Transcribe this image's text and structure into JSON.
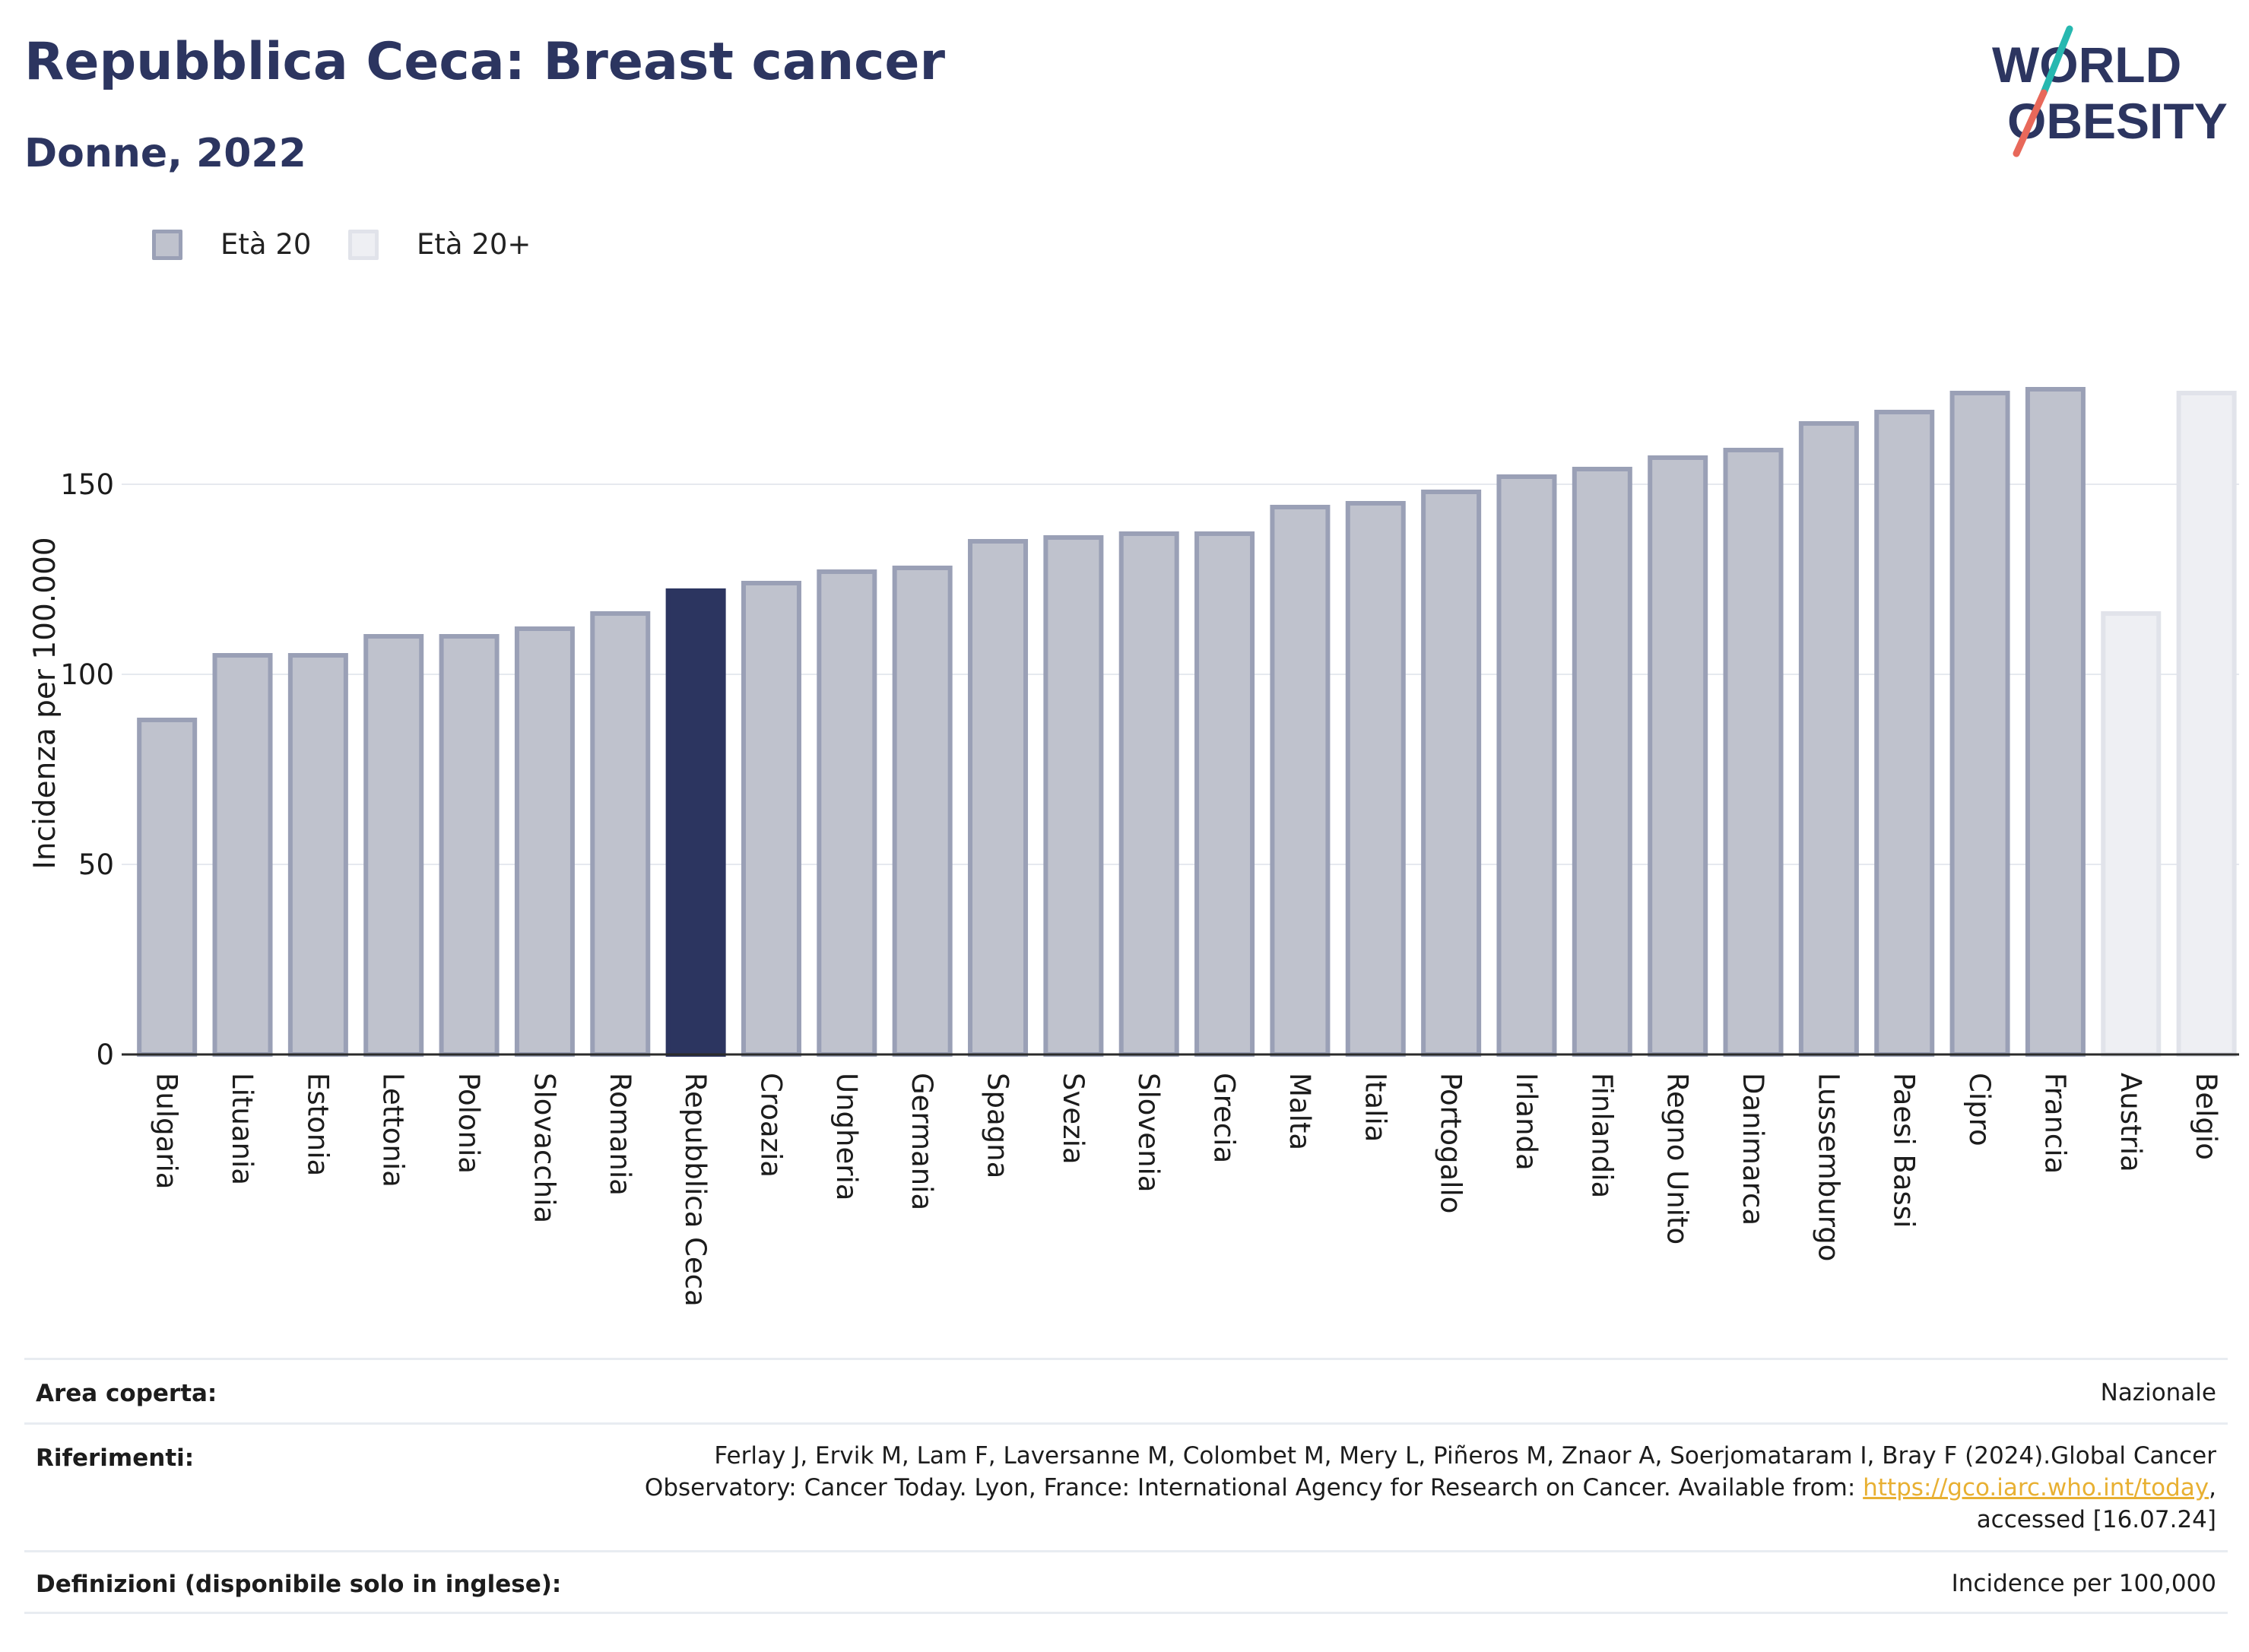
{
  "header": {
    "title": "Repubblica Ceca: Breast cancer",
    "subtitle": "Donne, 2022"
  },
  "logo": {
    "line1": "WORLD",
    "line2": "OBESITY",
    "colors": {
      "text": "#2c3560",
      "slash_top": "#27b8b0",
      "slash_bottom": "#e8685a"
    }
  },
  "colors": {
    "bar_default_fill": "#bfc2cd",
    "bar_default_stroke": "#9aa0b6",
    "bar_highlight_fill": "#2c3560",
    "bar_age20plus_fill": "#eeeff3",
    "bar_age20plus_stroke": "#e1e3ea",
    "axis": "#2b2b2b",
    "grid": "#e6e9ef"
  },
  "chart_data": {
    "type": "bar",
    "ylabel": "Incidenza per 100.000",
    "xlabel": "",
    "ylim": [
      0,
      185
    ],
    "yticks": [
      0,
      50,
      100,
      150
    ],
    "grid": true,
    "legend_position": "top-left",
    "legend": [
      {
        "label": "Età 20",
        "style": "age20"
      },
      {
        "label": "Età 20+",
        "style": "age20plus"
      }
    ],
    "highlight": "Repubblica Ceca",
    "categories": [
      "Bulgaria",
      "Lituania",
      "Estonia",
      "Lettonia",
      "Polonia",
      "Slovacchia",
      "Romania",
      "Repubblica Ceca",
      "Croazia",
      "Ungheria",
      "Germania",
      "Spagna",
      "Svezia",
      "Slovenia",
      "Grecia",
      "Malta",
      "Italia",
      "Portogallo",
      "Irlanda",
      "Finlandia",
      "Regno Unito",
      "Danimarca",
      "Lussemburgo",
      "Paesi Bassi",
      "Cipro",
      "Francia",
      "Austria",
      "Belgio"
    ],
    "values": [
      88,
      105,
      105,
      110,
      110,
      112,
      116,
      122,
      124,
      127,
      128,
      135,
      136,
      137,
      137,
      144,
      145,
      148,
      152,
      154,
      157,
      159,
      166,
      169,
      174,
      175,
      116,
      174
    ],
    "series_group": [
      "age20",
      "age20",
      "age20",
      "age20",
      "age20",
      "age20",
      "age20",
      "age20",
      "age20",
      "age20",
      "age20",
      "age20",
      "age20",
      "age20",
      "age20",
      "age20",
      "age20",
      "age20",
      "age20",
      "age20",
      "age20",
      "age20",
      "age20",
      "age20",
      "age20",
      "age20",
      "age20plus",
      "age20plus"
    ]
  },
  "info": {
    "area_label": "Area coperta:",
    "area_value": "Nazionale",
    "ref_label": "Riferimenti:",
    "ref_line1": "Ferlay J, Ervik M, Lam F, Laversanne M, Colombet M, Mery L, Piñeros M, Znaor A, Soerjomataram I, Bray F (2024).Global Cancer",
    "ref_line2_pre": "Observatory: Cancer Today. Lyon, France: International Agency for Research on Cancer. Available from: ",
    "ref_link": "https://gco.iarc.who.int/today",
    "ref_line2_post": ",",
    "ref_line3": "accessed [16.07.24]",
    "def_label": "Definizioni (disponibile solo in inglese):",
    "def_value": "Incidence per 100,000"
  }
}
